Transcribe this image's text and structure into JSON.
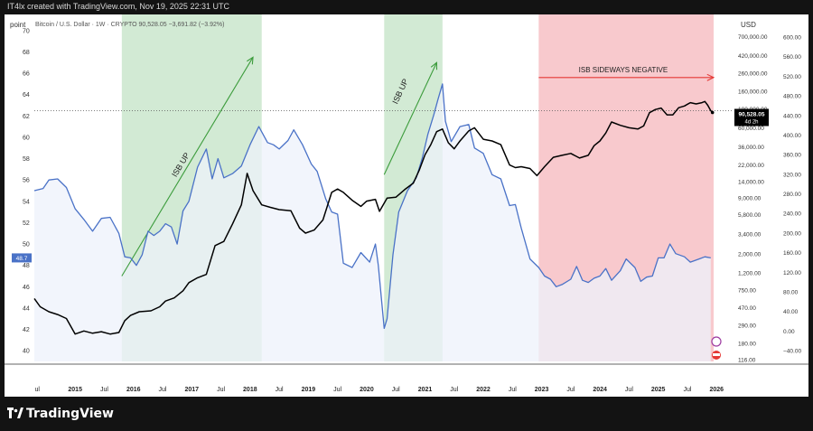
{
  "header": {
    "created_by": "IT4lx created with TradingView.com, Nov 19, 2025 22:31 UTC"
  },
  "footer": {
    "brand": "TradingView"
  },
  "chart_data": {
    "type": "line",
    "symbol_line": "Bitcoin / U.S. Dollar · 1W · CRYPTO  90,528.05  −3,691.82 (−3.92%)",
    "left_axis": {
      "title": "point",
      "ticks": [
        70,
        68,
        66,
        64,
        62,
        60,
        58,
        56,
        54,
        52,
        50,
        48,
        46,
        44,
        42,
        40
      ],
      "range": [
        39.0,
        71.0
      ],
      "current_value": "48.7"
    },
    "right_axis_outer": {
      "title": "USD",
      "ticks": [
        "600.00",
        "560.00",
        "520.00",
        "480.00",
        "440.00",
        "400.00",
        "360.00",
        "320.00",
        "280.00",
        "240.00",
        "200.00",
        "160.00",
        "120.00",
        "80.00",
        "40.00",
        "0.00",
        "−40.00"
      ]
    },
    "right_axis_price": {
      "scale": "log",
      "ticks": [
        700000,
        420000,
        260000,
        160000,
        100000,
        60000,
        36000,
        22000,
        14000,
        9000,
        5800,
        3400,
        2000,
        1200,
        750,
        470,
        290,
        180,
        116
      ],
      "tick_labels": [
        "700,000.00",
        "420,000.00",
        "260,000.00",
        "160,000.00",
        "100,000.00",
        "60,000.00",
        "36,000.00",
        "22,000.00",
        "14,000.00",
        "9,000.00",
        "5,800.00",
        "3,400.00",
        "2,000.00",
        "1,200.00",
        "750.00",
        "470.00",
        "290.00",
        "180.00",
        "116.00"
      ],
      "range": [
        110,
        1100000
      ],
      "last_price_label": "90,528.05",
      "countdown_label": "4d 2h"
    },
    "x_axis": {
      "range": [
        2014.3,
        2025.95
      ],
      "ticks": [
        {
          "x": 2014.35,
          "label": "ul"
        },
        {
          "x": 2015.0,
          "label": "2015"
        },
        {
          "x": 2015.5,
          "label": "Jul"
        },
        {
          "x": 2016.0,
          "label": "2016"
        },
        {
          "x": 2016.5,
          "label": "Jul"
        },
        {
          "x": 2017.0,
          "label": "2017"
        },
        {
          "x": 2017.5,
          "label": "Jul"
        },
        {
          "x": 2018.0,
          "label": "2018"
        },
        {
          "x": 2018.5,
          "label": "Jul"
        },
        {
          "x": 2019.0,
          "label": "2019"
        },
        {
          "x": 2019.5,
          "label": "Jul"
        },
        {
          "x": 2020.0,
          "label": "2020"
        },
        {
          "x": 2020.5,
          "label": "Jul"
        },
        {
          "x": 2021.0,
          "label": "2021"
        },
        {
          "x": 2021.5,
          "label": "Jul"
        },
        {
          "x": 2022.0,
          "label": "2022"
        },
        {
          "x": 2022.5,
          "label": "Jul"
        },
        {
          "x": 2023.0,
          "label": "2023"
        },
        {
          "x": 2023.5,
          "label": "Jul"
        },
        {
          "x": 2024.0,
          "label": "2024"
        },
        {
          "x": 2024.5,
          "label": "Jul"
        },
        {
          "x": 2025.0,
          "label": "2025"
        },
        {
          "x": 2025.5,
          "label": "Jul"
        },
        {
          "x": 2026.0,
          "label": "2026"
        }
      ]
    },
    "zones": [
      {
        "x0": 2015.8,
        "x1": 2018.2,
        "color": "#d2ead4",
        "label": "ISB UP"
      },
      {
        "x0": 2020.3,
        "x1": 2021.3,
        "color": "#d2ead4",
        "label": "ISB UP"
      },
      {
        "x0": 2022.95,
        "x1": 2025.95,
        "color": "#f8c9cd",
        "label": "ISB SIDEWAYS NEGATIVE"
      }
    ],
    "arrows": [
      {
        "from": [
          2015.8,
          47.0
        ],
        "to": [
          2018.05,
          67.5
        ],
        "color": "#3c9c3c"
      },
      {
        "from": [
          2020.3,
          56.5
        ],
        "to": [
          2021.2,
          67.0
        ],
        "color": "#3c9c3c"
      },
      {
        "from": [
          2022.95,
          65.6
        ],
        "to": [
          2025.95,
          65.6
        ],
        "color": "#e53935"
      }
    ],
    "reference_price": 95000,
    "series": [
      {
        "name": "ISB",
        "axis": "left",
        "color": "#4a72c7",
        "values": [
          [
            2014.3,
            55.0
          ],
          [
            2014.45,
            55.2
          ],
          [
            2014.55,
            56.0
          ],
          [
            2014.7,
            56.1
          ],
          [
            2014.85,
            55.3
          ],
          [
            2015.0,
            53.3
          ],
          [
            2015.15,
            52.3
          ],
          [
            2015.3,
            51.2
          ],
          [
            2015.45,
            52.4
          ],
          [
            2015.6,
            52.5
          ],
          [
            2015.75,
            51.0
          ],
          [
            2015.85,
            48.8
          ],
          [
            2015.95,
            48.7
          ],
          [
            2016.05,
            48.0
          ],
          [
            2016.15,
            49.0
          ],
          [
            2016.25,
            51.2
          ],
          [
            2016.35,
            50.8
          ],
          [
            2016.45,
            51.2
          ],
          [
            2016.55,
            51.9
          ],
          [
            2016.65,
            51.6
          ],
          [
            2016.75,
            50.0
          ],
          [
            2016.85,
            53.1
          ],
          [
            2016.95,
            54.0
          ],
          [
            2017.1,
            57.2
          ],
          [
            2017.25,
            58.9
          ],
          [
            2017.35,
            56.1
          ],
          [
            2017.45,
            58.0
          ],
          [
            2017.55,
            56.2
          ],
          [
            2017.7,
            56.6
          ],
          [
            2017.85,
            57.3
          ],
          [
            2018.0,
            59.3
          ],
          [
            2018.15,
            61.0
          ],
          [
            2018.3,
            59.5
          ],
          [
            2018.4,
            59.3
          ],
          [
            2018.5,
            58.9
          ],
          [
            2018.65,
            59.7
          ],
          [
            2018.75,
            60.7
          ],
          [
            2018.9,
            59.3
          ],
          [
            2019.05,
            57.5
          ],
          [
            2019.15,
            56.8
          ],
          [
            2019.3,
            54.2
          ],
          [
            2019.4,
            53.0
          ],
          [
            2019.5,
            52.8
          ],
          [
            2019.6,
            48.2
          ],
          [
            2019.75,
            47.8
          ],
          [
            2019.9,
            49.2
          ],
          [
            2020.05,
            48.3
          ],
          [
            2020.15,
            50.0
          ],
          [
            2020.2,
            48.0
          ],
          [
            2020.3,
            42.1
          ],
          [
            2020.35,
            43.0
          ],
          [
            2020.45,
            49.0
          ],
          [
            2020.55,
            53.0
          ],
          [
            2020.7,
            55.0
          ],
          [
            2020.85,
            56.2
          ],
          [
            2020.95,
            58.0
          ],
          [
            2021.05,
            60.3
          ],
          [
            2021.15,
            62.1
          ],
          [
            2021.22,
            63.5
          ],
          [
            2021.3,
            65.0
          ],
          [
            2021.35,
            61.5
          ],
          [
            2021.45,
            59.6
          ],
          [
            2021.6,
            61.0
          ],
          [
            2021.75,
            61.2
          ],
          [
            2021.85,
            59.0
          ],
          [
            2022.0,
            58.5
          ],
          [
            2022.15,
            56.5
          ],
          [
            2022.3,
            56.1
          ],
          [
            2022.45,
            53.6
          ],
          [
            2022.55,
            53.7
          ],
          [
            2022.65,
            51.5
          ],
          [
            2022.8,
            48.6
          ],
          [
            2022.95,
            47.8
          ],
          [
            2023.05,
            47.0
          ],
          [
            2023.15,
            46.7
          ],
          [
            2023.25,
            46.0
          ],
          [
            2023.35,
            46.2
          ],
          [
            2023.5,
            46.7
          ],
          [
            2023.6,
            47.9
          ],
          [
            2023.7,
            46.6
          ],
          [
            2023.8,
            46.4
          ],
          [
            2023.9,
            46.8
          ],
          [
            2024.0,
            47.0
          ],
          [
            2024.1,
            47.7
          ],
          [
            2024.2,
            46.6
          ],
          [
            2024.35,
            47.5
          ],
          [
            2024.45,
            48.6
          ],
          [
            2024.6,
            47.8
          ],
          [
            2024.7,
            46.5
          ],
          [
            2024.8,
            46.9
          ],
          [
            2024.9,
            47.0
          ],
          [
            2025.0,
            48.7
          ],
          [
            2025.1,
            48.7
          ],
          [
            2025.2,
            50.0
          ],
          [
            2025.3,
            49.1
          ],
          [
            2025.45,
            48.8
          ],
          [
            2025.55,
            48.3
          ],
          [
            2025.7,
            48.6
          ],
          [
            2025.8,
            48.8
          ],
          [
            2025.9,
            48.7
          ]
        ]
      },
      {
        "name": "BTCUSD",
        "axis": "price",
        "color": "#000000",
        "values": [
          [
            2014.3,
            600
          ],
          [
            2014.4,
            480
          ],
          [
            2014.55,
            420
          ],
          [
            2014.7,
            390
          ],
          [
            2014.85,
            350
          ],
          [
            2015.0,
            230
          ],
          [
            2015.15,
            250
          ],
          [
            2015.3,
            235
          ],
          [
            2015.45,
            245
          ],
          [
            2015.6,
            230
          ],
          [
            2015.75,
            240
          ],
          [
            2015.85,
            330
          ],
          [
            2015.95,
            380
          ],
          [
            2016.1,
            420
          ],
          [
            2016.3,
            430
          ],
          [
            2016.45,
            480
          ],
          [
            2016.55,
            560
          ],
          [
            2016.7,
            610
          ],
          [
            2016.85,
            740
          ],
          [
            2016.95,
            920
          ],
          [
            2017.1,
            1050
          ],
          [
            2017.25,
            1150
          ],
          [
            2017.4,
            2500
          ],
          [
            2017.55,
            2800
          ],
          [
            2017.7,
            4500
          ],
          [
            2017.85,
            7500
          ],
          [
            2017.95,
            17500
          ],
          [
            2018.05,
            11000
          ],
          [
            2018.2,
            7500
          ],
          [
            2018.35,
            7000
          ],
          [
            2018.5,
            6600
          ],
          [
            2018.7,
            6400
          ],
          [
            2018.85,
            4000
          ],
          [
            2018.95,
            3500
          ],
          [
            2019.1,
            3800
          ],
          [
            2019.25,
            5000
          ],
          [
            2019.4,
            10500
          ],
          [
            2019.5,
            11500
          ],
          [
            2019.6,
            10500
          ],
          [
            2019.75,
            8500
          ],
          [
            2019.9,
            7200
          ],
          [
            2020.0,
            8300
          ],
          [
            2020.15,
            8700
          ],
          [
            2020.22,
            6300
          ],
          [
            2020.35,
            9000
          ],
          [
            2020.5,
            9200
          ],
          [
            2020.65,
            11300
          ],
          [
            2020.8,
            13500
          ],
          [
            2020.9,
            19000
          ],
          [
            2021.0,
            29000
          ],
          [
            2021.1,
            38000
          ],
          [
            2021.2,
            54000
          ],
          [
            2021.3,
            58000
          ],
          [
            2021.4,
            40000
          ],
          [
            2021.5,
            34000
          ],
          [
            2021.6,
            42000
          ],
          [
            2021.75,
            55000
          ],
          [
            2021.85,
            60000
          ],
          [
            2022.0,
            44000
          ],
          [
            2022.15,
            42000
          ],
          [
            2022.3,
            38000
          ],
          [
            2022.45,
            22000
          ],
          [
            2022.55,
            20500
          ],
          [
            2022.65,
            21000
          ],
          [
            2022.8,
            20000
          ],
          [
            2022.92,
            16500
          ],
          [
            2023.05,
            21000
          ],
          [
            2023.2,
            27000
          ],
          [
            2023.35,
            28500
          ],
          [
            2023.5,
            30000
          ],
          [
            2023.65,
            26500
          ],
          [
            2023.8,
            28500
          ],
          [
            2023.9,
            37000
          ],
          [
            2024.0,
            42000
          ],
          [
            2024.1,
            52000
          ],
          [
            2024.2,
            70000
          ],
          [
            2024.35,
            64000
          ],
          [
            2024.5,
            60000
          ],
          [
            2024.65,
            58000
          ],
          [
            2024.75,
            63000
          ],
          [
            2024.85,
            90000
          ],
          [
            2024.95,
            98000
          ],
          [
            2025.05,
            102000
          ],
          [
            2025.15,
            85000
          ],
          [
            2025.25,
            85000
          ],
          [
            2025.35,
            103000
          ],
          [
            2025.45,
            108000
          ],
          [
            2025.55,
            118000
          ],
          [
            2025.65,
            114000
          ],
          [
            2025.75,
            118000
          ],
          [
            2025.8,
            122000
          ],
          [
            2025.85,
            110000
          ],
          [
            2025.9,
            95000
          ],
          [
            2025.93,
            90528
          ]
        ]
      }
    ],
    "colors": {
      "left_panel_shade": "#eef2fb",
      "pink_isb_fill": "#e8c1d0",
      "isb_line": "#4a72c7",
      "btc_line": "#000000",
      "current_isb_badge": "#4a72c7",
      "price_badge": "#000000"
    }
  }
}
